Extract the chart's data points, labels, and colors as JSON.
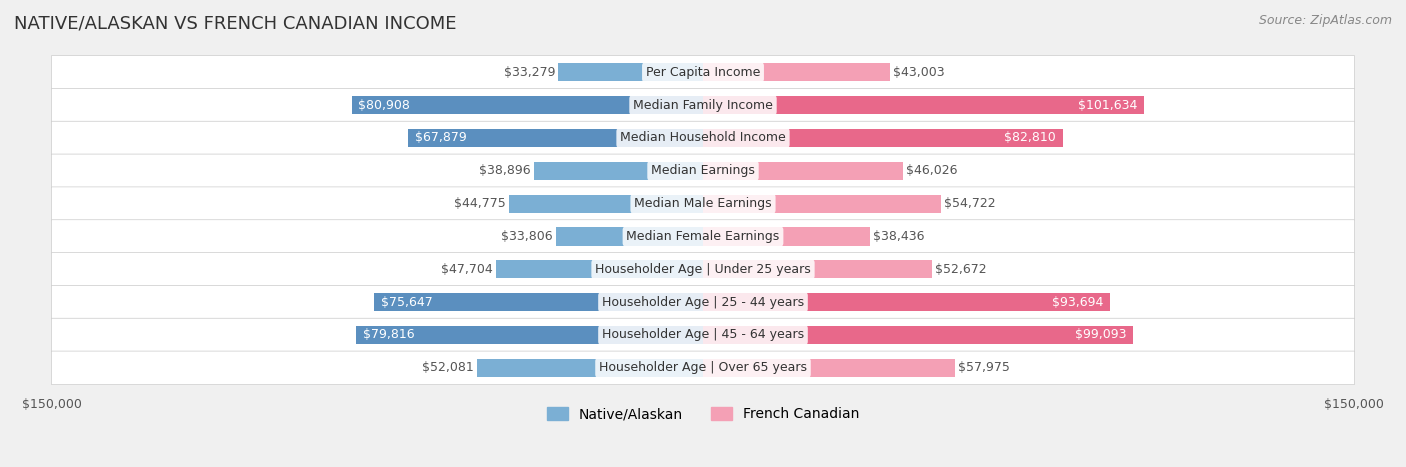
{
  "title": "NATIVE/ALASKAN VS FRENCH CANADIAN INCOME",
  "source": "Source: ZipAtlas.com",
  "categories": [
    "Per Capita Income",
    "Median Family Income",
    "Median Household Income",
    "Median Earnings",
    "Median Male Earnings",
    "Median Female Earnings",
    "Householder Age | Under 25 years",
    "Householder Age | 25 - 44 years",
    "Householder Age | 45 - 64 years",
    "Householder Age | Over 65 years"
  ],
  "native_values": [
    33279,
    80908,
    67879,
    38896,
    44775,
    33806,
    47704,
    75647,
    79816,
    52081
  ],
  "french_values": [
    43003,
    101634,
    82810,
    46026,
    54722,
    38436,
    52672,
    93694,
    99093,
    57975
  ],
  "native_labels": [
    "$33,279",
    "$80,908",
    "$67,879",
    "$38,896",
    "$44,775",
    "$33,806",
    "$47,704",
    "$75,647",
    "$79,816",
    "$52,081"
  ],
  "french_labels": [
    "$43,003",
    "$101,634",
    "$82,810",
    "$46,026",
    "$54,722",
    "$38,436",
    "$52,672",
    "$93,694",
    "$99,093",
    "$57,975"
  ],
  "native_color": "#7bafd4",
  "native_color_dark": "#5b8fbf",
  "french_color": "#f4a0b5",
  "french_color_dark": "#e8688a",
  "max_value": 150000,
  "bg_color": "#f0f0f0",
  "row_bg_color": "#f8f8f8",
  "label_fontsize": 9,
  "title_fontsize": 13,
  "legend_fontsize": 10,
  "source_fontsize": 9,
  "bar_height": 0.55,
  "native_high_threshold": 60000,
  "french_high_threshold": 80000
}
